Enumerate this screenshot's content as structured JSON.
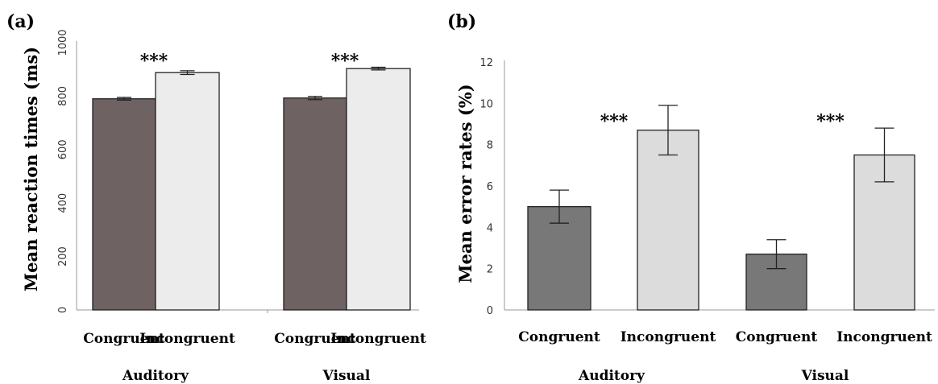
{
  "chart_data": [
    {
      "type": "bar",
      "panel": "(a)",
      "ylabel": "Mean reaction times (ms)",
      "ylim": [
        0,
        1000
      ],
      "yticks": [
        "0",
        "200",
        "400",
        "600",
        "800",
        "1000"
      ],
      "groups": [
        "Auditory",
        "Visual"
      ],
      "categories": [
        "Congruent",
        "Incongruent"
      ],
      "values": [
        [
          790,
          888
        ],
        [
          793,
          903
        ]
      ],
      "errors": [
        [
          5,
          7
        ],
        [
          6,
          5
        ]
      ],
      "significance": [
        "***",
        "***"
      ],
      "colors": [
        "#6f6262",
        "#ececec"
      ]
    },
    {
      "type": "bar",
      "panel": "(b)",
      "ylabel": "Mean error rates (%)",
      "ylim": [
        0,
        12
      ],
      "yticks": [
        "0",
        "2",
        "4",
        "6",
        "8",
        "10",
        "12"
      ],
      "groups": [
        "Auditory",
        "Visual"
      ],
      "categories": [
        "Congruent",
        "Incongruent"
      ],
      "values": [
        [
          5.0,
          8.7
        ],
        [
          2.7,
          7.5
        ]
      ],
      "errors": [
        [
          0.8,
          1.2
        ],
        [
          0.7,
          1.3
        ]
      ],
      "significance": [
        "***",
        "***"
      ],
      "colors": [
        "#787878",
        "#dcdcdc"
      ]
    }
  ]
}
